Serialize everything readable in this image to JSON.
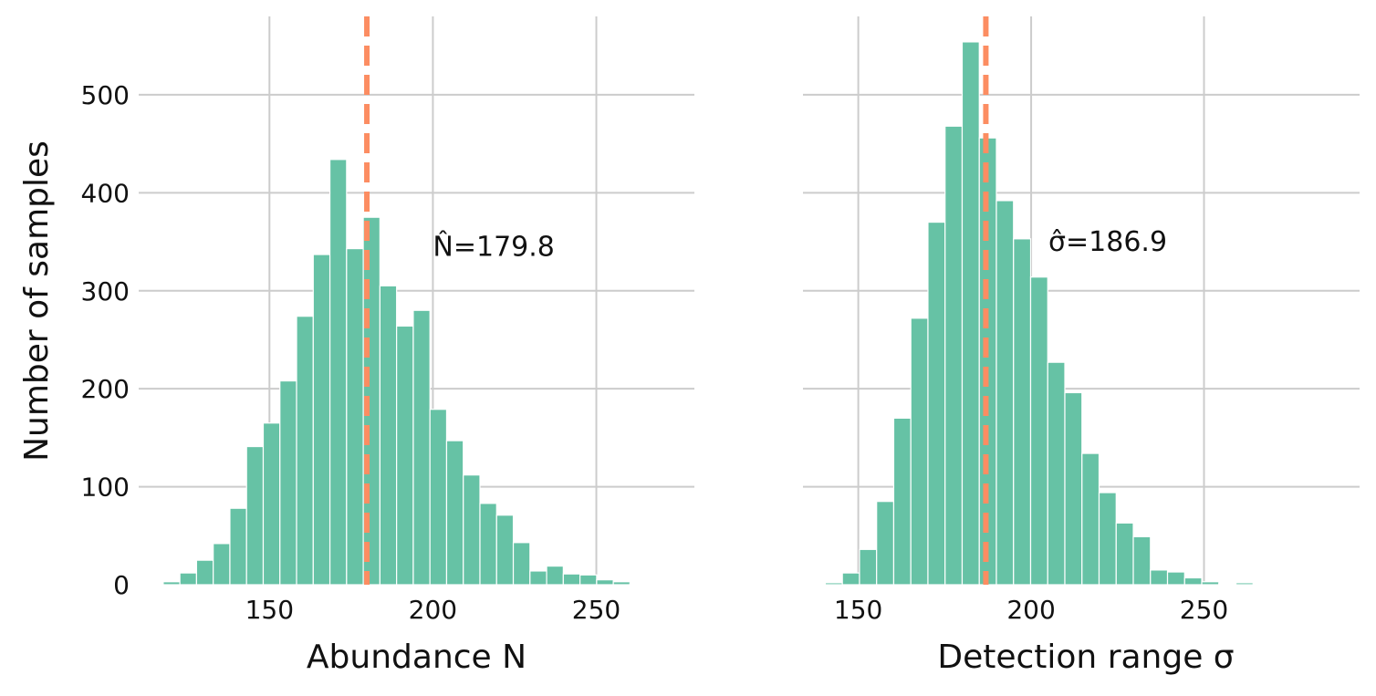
{
  "chart_data": [
    {
      "type": "bar",
      "subtype": "histogram",
      "xlabel": "Abundance N",
      "ylabel": "Number of samples",
      "xlim": [
        110,
        280
      ],
      "ylim": [
        0,
        580
      ],
      "xticks": [
        150,
        200,
        250
      ],
      "yticks": [
        0,
        100,
        200,
        300,
        400,
        500
      ],
      "grid": true,
      "bin_width": 5.1,
      "bin_start": 117.5,
      "values": [
        3,
        12,
        25,
        42,
        78,
        141,
        165,
        208,
        274,
        337,
        434,
        343,
        375,
        305,
        264,
        280,
        179,
        147,
        112,
        83,
        71,
        43,
        14,
        19,
        11,
        10,
        5,
        3,
        1,
        1
      ],
      "reference_line": {
        "x": 179.8,
        "style": "dashed",
        "color": "#fc8d62"
      },
      "annotation": {
        "text": "N̂=179.8",
        "x": 200,
        "y": 345
      },
      "bar_color": "#66c2a5"
    },
    {
      "type": "bar",
      "subtype": "histogram",
      "xlabel": "Detection range σ",
      "ylabel": "",
      "xlim": [
        134,
        295
      ],
      "ylim": [
        0,
        580
      ],
      "xticks": [
        150,
        200,
        250
      ],
      "yticks": [
        0,
        100,
        200,
        300,
        400,
        500
      ],
      "grid": true,
      "bin_width": 4.95,
      "bin_start": 135.5,
      "values": [
        0,
        2,
        12,
        36,
        85,
        170,
        272,
        370,
        468,
        554,
        456,
        392,
        353,
        314,
        227,
        196,
        134,
        94,
        63,
        49,
        15,
        13,
        7,
        3,
        1,
        2,
        0,
        1,
        0,
        0,
        0,
        0
      ],
      "reference_line": {
        "x": 186.9,
        "style": "dashed",
        "color": "#fc8d62"
      },
      "annotation": {
        "text": "σ̂=186.9",
        "x": 205,
        "y": 350
      },
      "bar_color": "#66c2a5"
    }
  ]
}
